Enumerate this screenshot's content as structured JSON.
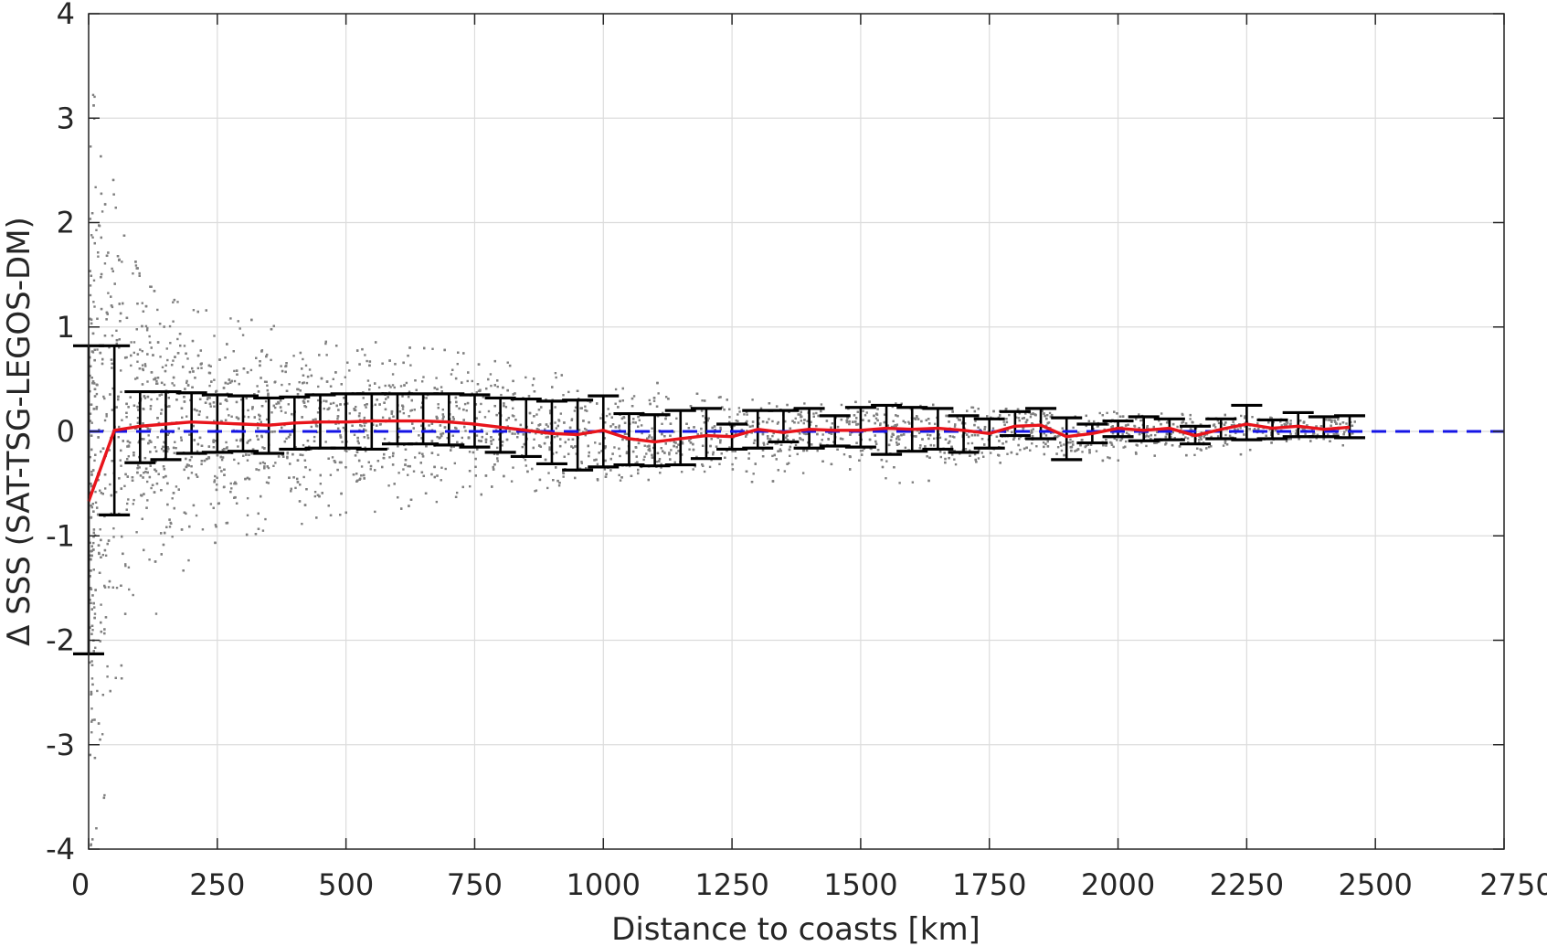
{
  "chart_data": {
    "type": "scatter",
    "title": "",
    "xlabel": "Distance to coasts [km]",
    "ylabel": "Δ SSS (SAT-TSG-LEGOS-DM)",
    "xlim": [
      0,
      2750
    ],
    "ylim": [
      -4,
      4
    ],
    "xticks": [
      0,
      250,
      500,
      750,
      1000,
      1250,
      1500,
      1750,
      2000,
      2250,
      2500,
      2750
    ],
    "yticks": [
      -4,
      -3,
      -2,
      -1,
      0,
      1,
      2,
      3,
      4
    ],
    "xtick_labels": [
      "0",
      "250",
      "500",
      "750",
      "1000",
      "1250",
      "1500",
      "1750",
      "2000",
      "2250",
      "2500",
      "2750"
    ],
    "ytick_labels": [
      "-4",
      "-3",
      "-2",
      "-1",
      "0",
      "1",
      "2",
      "3",
      "4"
    ],
    "grid": true,
    "legend": "none",
    "colors": {
      "scatter": "#808080",
      "mean_line": "#e8141b",
      "zero_line": "#1414e6",
      "error_bars": "#000000"
    },
    "series": [
      {
        "kind": "binned-mean-line",
        "x": [
          0,
          50,
          100,
          150,
          200,
          250,
          300,
          350,
          400,
          450,
          500,
          550,
          600,
          650,
          700,
          750,
          800,
          850,
          900,
          950,
          1000,
          1050,
          1100,
          1150,
          1200,
          1250,
          1300,
          1350,
          1400,
          1450,
          1500,
          1550,
          1600,
          1650,
          1700,
          1750,
          1800,
          1850,
          1900,
          1950,
          2000,
          2050,
          2100,
          2150,
          2200,
          2250,
          2300,
          2350,
          2400,
          2450
        ],
        "y": [
          -0.67,
          0.01,
          0.05,
          0.07,
          0.09,
          0.08,
          0.07,
          0.06,
          0.08,
          0.09,
          0.09,
          0.1,
          0.1,
          0.1,
          0.09,
          0.07,
          0.04,
          0.01,
          -0.02,
          -0.03,
          0.01,
          -0.07,
          -0.1,
          -0.07,
          -0.04,
          -0.05,
          0.02,
          -0.01,
          0.02,
          0.01,
          0.01,
          0.03,
          0.02,
          0.03,
          0.01,
          -0.02,
          0.05,
          0.06,
          -0.05,
          -0.02,
          0.03,
          0.01,
          0.03,
          -0.04,
          0.02,
          0.07,
          0.03,
          0.05,
          0.02,
          0.04
        ]
      },
      {
        "kind": "error-bars",
        "x": [
          0,
          50,
          100,
          150,
          200,
          250,
          300,
          350,
          400,
          450,
          500,
          550,
          600,
          650,
          700,
          750,
          800,
          850,
          900,
          950,
          1000,
          1050,
          1100,
          1150,
          1200,
          1250,
          1300,
          1350,
          1400,
          1450,
          1500,
          1550,
          1600,
          1650,
          1700,
          1750,
          1800,
          1850,
          1900,
          1950,
          2000,
          2050,
          2100,
          2150,
          2200,
          2250,
          2300,
          2350,
          2400,
          2450
        ],
        "upper": [
          0.82,
          0.82,
          0.38,
          0.38,
          0.37,
          0.35,
          0.34,
          0.32,
          0.33,
          0.35,
          0.36,
          0.36,
          0.36,
          0.36,
          0.36,
          0.35,
          0.32,
          0.31,
          0.29,
          0.3,
          0.34,
          0.17,
          0.16,
          0.2,
          0.22,
          0.07,
          0.2,
          0.2,
          0.22,
          0.15,
          0.23,
          0.25,
          0.23,
          0.22,
          0.15,
          0.12,
          0.19,
          0.22,
          0.13,
          0.07,
          0.1,
          0.14,
          0.12,
          0.05,
          0.12,
          0.25,
          0.11,
          0.18,
          0.14,
          0.15
        ],
        "lower": [
          -2.13,
          -0.8,
          -0.3,
          -0.27,
          -0.21,
          -0.2,
          -0.19,
          -0.21,
          -0.17,
          -0.16,
          -0.16,
          -0.17,
          -0.12,
          -0.12,
          -0.13,
          -0.15,
          -0.2,
          -0.24,
          -0.31,
          -0.37,
          -0.34,
          -0.32,
          -0.33,
          -0.32,
          -0.26,
          -0.17,
          -0.16,
          -0.1,
          -0.16,
          -0.14,
          -0.15,
          -0.22,
          -0.19,
          -0.17,
          -0.2,
          -0.16,
          -0.04,
          -0.07,
          -0.27,
          -0.11,
          -0.05,
          -0.09,
          -0.08,
          -0.12,
          -0.07,
          -0.08,
          -0.07,
          -0.05,
          -0.05,
          -0.06
        ]
      },
      {
        "kind": "reference-line",
        "x": [
          0,
          2750
        ],
        "y": [
          0,
          0
        ]
      },
      {
        "kind": "scatter-envelope",
        "x": [
          0,
          25,
          50,
          100,
          150,
          200,
          300,
          400,
          500,
          600,
          700,
          800,
          900,
          1000,
          1100,
          1200,
          1300,
          1500,
          1700,
          1900,
          2100,
          2300,
          2450
        ],
        "upper": [
          3.0,
          3.9,
          2.2,
          1.5,
          1.3,
          1.2,
          1.1,
          1.0,
          0.9,
          0.85,
          0.8,
          0.7,
          0.6,
          0.55,
          0.5,
          0.45,
          0.3,
          0.3,
          0.25,
          0.2,
          0.2,
          0.15,
          0.12
        ],
        "lower": [
          -4.0,
          -3.6,
          -2.8,
          -2.0,
          -1.6,
          -1.2,
          -1.0,
          -0.9,
          -0.8,
          -0.75,
          -0.7,
          -0.6,
          -0.55,
          -0.5,
          -0.5,
          -0.45,
          -0.5,
          -0.5,
          -0.5,
          -0.3,
          -0.25,
          -0.2,
          -0.15
        ]
      }
    ]
  }
}
